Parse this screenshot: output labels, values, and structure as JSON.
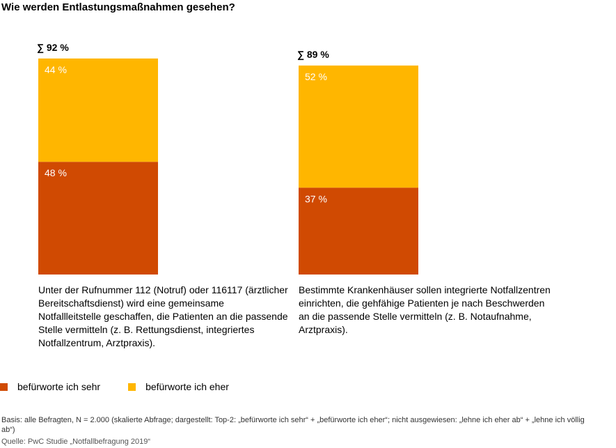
{
  "chart_data": {
    "type": "bar",
    "stacked": true,
    "title": "Wie werden Entlastungsmaßnahmen gesehen?",
    "ylim": [
      0,
      100
    ],
    "grid": false,
    "legend_position": "bottom-left",
    "categories": [
      "Unter der Rufnummer 112 (Notruf) oder 116117 (ärztlicher Bereitschaftsdienst) wird eine gemeinsame Notfallleitstelle geschaffen, die Patienten an die passende Stelle vermitteln (z. B. Rettungsdienst, integriertes Notfallzentrum, Arztpraxis).",
      "Bestimmte Krankenhäuser sollen integrierte Notfallzentren einrichten, die gehfähige Patienten je nach Beschwerden an die passende Stelle vermitteln (z. B. Notaufnahme, Arztpraxis)."
    ],
    "series": [
      {
        "name": "befürworte ich sehr",
        "values": [
          48,
          37
        ],
        "labels": [
          "48 %",
          "37 %"
        ],
        "color": "#d04a02"
      },
      {
        "name": "befürworte ich eher",
        "values": [
          44,
          52
        ],
        "labels": [
          "44 %",
          "52 %"
        ],
        "color": "#ffb600"
      }
    ],
    "totals": [
      92,
      89
    ],
    "total_labels": [
      "∑ 92 %",
      "∑ 89 %"
    ]
  },
  "footnote": "Basis: alle Befragten, N = 2.000 (skalierte Abfrage; dargestellt: Top-2: „befürworte ich sehr“ + „befürworte ich eher“; nicht ausgewiesen: „lehne ich eher ab“ + „lehne ich völlig ab“)",
  "source": "Quelle: PwC Studie „Notfallbefragung 2019“"
}
